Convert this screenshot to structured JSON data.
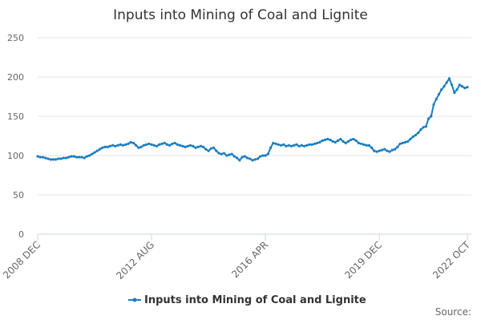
{
  "chart_data": {
    "type": "line",
    "title": "Inputs into Mining of Coal and Lignite",
    "categories": [
      "2008 DEC",
      null,
      null,
      null,
      null,
      null,
      null,
      null,
      null,
      null,
      null,
      null,
      null,
      null,
      null,
      null,
      null,
      null,
      null,
      null,
      null,
      null,
      null,
      null,
      null,
      null,
      null,
      null,
      null,
      null,
      null,
      null,
      null,
      null,
      null,
      null,
      null,
      null,
      null,
      null,
      null,
      null,
      null,
      null,
      "2012 AUG",
      null,
      null,
      null,
      null,
      null,
      null,
      null,
      null,
      null,
      null,
      null,
      null,
      null,
      null,
      null,
      null,
      null,
      null,
      null,
      null,
      null,
      null,
      null,
      null,
      null,
      null,
      null,
      null,
      null,
      null,
      null,
      null,
      null,
      null,
      null,
      null,
      null,
      null,
      null,
      null,
      null,
      null,
      null,
      "2016 APR",
      null,
      null,
      null,
      null,
      null,
      null,
      null,
      null,
      null,
      null,
      null,
      null,
      null,
      null,
      null,
      null,
      null,
      null,
      null,
      null,
      null,
      null,
      null,
      null,
      null,
      null,
      null,
      null,
      null,
      null,
      null,
      null,
      null,
      null,
      null,
      null,
      null,
      null,
      null,
      null,
      null,
      null,
      null,
      "2019 DEC",
      null,
      null,
      null,
      null,
      null,
      null,
      null,
      null,
      null,
      null,
      null,
      null,
      null,
      null,
      null,
      null,
      null,
      null,
      null,
      null,
      null,
      null,
      null,
      null,
      null,
      null,
      null,
      null,
      null,
      null,
      null,
      null,
      null,
      "2022 OCT"
    ],
    "series": [
      {
        "name": "Inputs into Mining of Coal and Lignite",
        "color": "#1a7dc0",
        "values": [
          99,
          98,
          98,
          97,
          96,
          95,
          95,
          95,
          96,
          96,
          97,
          97,
          98,
          99,
          99,
          98,
          98,
          98,
          97,
          99,
          100,
          102,
          104,
          106,
          108,
          110,
          111,
          111,
          112,
          113,
          112,
          113,
          114,
          113,
          114,
          115,
          117,
          116,
          113,
          110,
          111,
          113,
          114,
          115,
          114,
          113,
          112,
          114,
          115,
          116,
          114,
          113,
          115,
          116,
          114,
          113,
          112,
          111,
          112,
          113,
          112,
          110,
          111,
          112,
          111,
          108,
          106,
          109,
          110,
          106,
          103,
          102,
          103,
          100,
          101,
          102,
          99,
          97,
          94,
          98,
          99,
          97,
          96,
          94,
          95,
          96,
          99,
          100,
          100,
          102,
          110,
          116,
          115,
          114,
          113,
          114,
          112,
          113,
          112,
          113,
          114,
          112,
          113,
          112,
          113,
          114,
          114,
          115,
          116,
          117,
          119,
          120,
          121,
          120,
          118,
          117,
          119,
          121,
          118,
          116,
          118,
          120,
          121,
          119,
          116,
          115,
          114,
          113,
          113,
          110,
          106,
          105,
          106,
          107,
          108,
          106,
          105,
          107,
          108,
          111,
          115,
          116,
          117,
          118,
          121,
          124,
          126,
          129,
          133,
          136,
          137,
          147,
          150,
          165,
          172,
          178,
          184,
          188,
          193,
          198,
          190,
          180,
          184,
          190,
          188,
          186,
          187
        ]
      }
    ],
    "ylim": [
      0,
      250
    ],
    "yticks": [
      0,
      50,
      100,
      150,
      200,
      250
    ],
    "grid": true,
    "legend": "bottom",
    "source": "Source:"
  }
}
